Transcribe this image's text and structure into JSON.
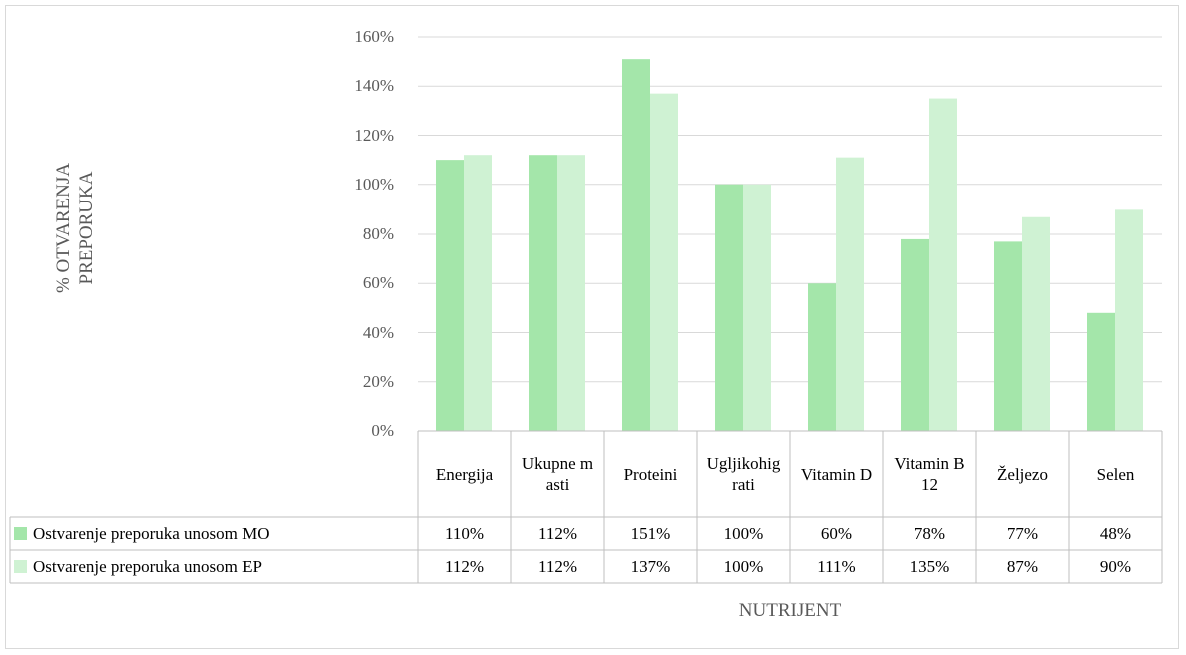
{
  "chart_data": {
    "type": "bar",
    "y_label": "% OTVARENJA PREPORUKA",
    "x_label": "NUTRIJENT",
    "categories": [
      "Energija",
      "Ukupne masti",
      "Proteini",
      "Ugljikohigrati",
      "Vitamin D",
      "Vitamin B12",
      "Željezo",
      "Selen"
    ],
    "series": [
      {
        "name": "Ostvarenje preporuka unosom MO",
        "color": "#a4e6aa",
        "values": [
          110,
          112,
          151,
          100,
          60,
          78,
          77,
          48
        ],
        "value_labels": [
          "110%",
          "112%",
          "151%",
          "100%",
          "60%",
          "78%",
          "77%",
          "48%"
        ]
      },
      {
        "name": "Ostvarenje preporuka unosom EP",
        "color": "#cff2d3",
        "values": [
          112,
          112,
          137,
          100,
          111,
          135,
          87,
          90
        ],
        "value_labels": [
          "112%",
          "112%",
          "137%",
          "100%",
          "111%",
          "135%",
          "87%",
          "90%"
        ]
      }
    ],
    "ylim": [
      0,
      160
    ],
    "yticks": [
      {
        "value": 0,
        "label": "0%"
      },
      {
        "value": 20,
        "label": "20%"
      },
      {
        "value": 40,
        "label": "40%"
      },
      {
        "value": 60,
        "label": "60%"
      },
      {
        "value": 80,
        "label": "80%"
      },
      {
        "value": 100,
        "label": "100%"
      },
      {
        "value": 120,
        "label": "120%"
      },
      {
        "value": 140,
        "label": "140%"
      },
      {
        "value": 160,
        "label": "160%"
      }
    ],
    "grid": true
  }
}
